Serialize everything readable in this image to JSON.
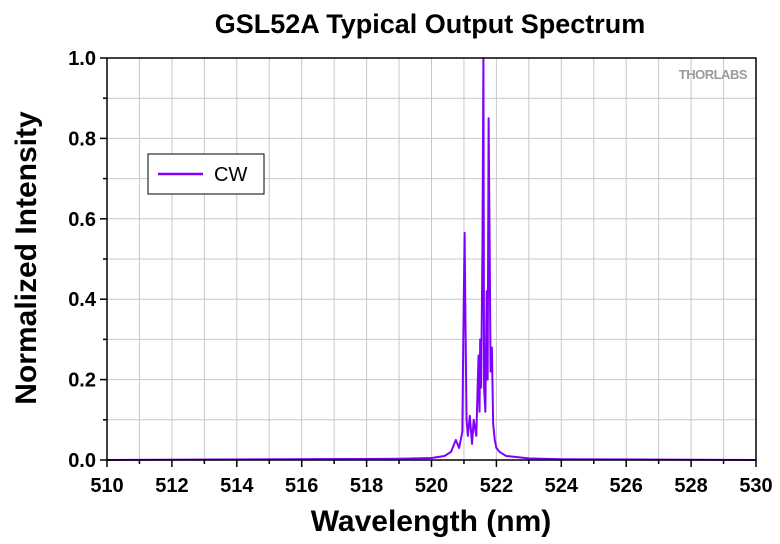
{
  "chart_data": {
    "type": "line",
    "title": "GSL52A Typical Output Spectrum",
    "xlabel": "Wavelength (nm)",
    "ylabel": "Normalized Intensity",
    "xlim": [
      510,
      530
    ],
    "ylim": [
      0,
      1.0
    ],
    "xticks": [
      "510",
      "512",
      "514",
      "516",
      "518",
      "520",
      "522",
      "524",
      "526",
      "528",
      "530"
    ],
    "yticks": [
      "0.0",
      "0.2",
      "0.4",
      "0.6",
      "0.8",
      "1.0"
    ],
    "grid": true,
    "legend_position": "upper-left",
    "logo": "THORLABS",
    "series": [
      {
        "name": "CW",
        "color": "#8000ff",
        "x": [
          510.0,
          519.0,
          520.0,
          520.4,
          520.6,
          520.75,
          520.85,
          520.95,
          520.98,
          521.02,
          521.05,
          521.08,
          521.12,
          521.18,
          521.25,
          521.3,
          521.38,
          521.45,
          521.48,
          521.5,
          521.53,
          521.57,
          521.6,
          521.62,
          521.66,
          521.7,
          521.73,
          521.76,
          521.8,
          521.82,
          521.86,
          521.9,
          521.95,
          522.0,
          522.1,
          522.3,
          523.0,
          524.0,
          530.0
        ],
        "values": [
          0.0,
          0.003,
          0.005,
          0.01,
          0.02,
          0.05,
          0.03,
          0.07,
          0.3,
          0.565,
          0.32,
          0.1,
          0.06,
          0.11,
          0.04,
          0.1,
          0.06,
          0.26,
          0.12,
          0.3,
          0.18,
          0.53,
          1.0,
          0.18,
          0.12,
          0.42,
          0.2,
          0.85,
          0.45,
          0.22,
          0.28,
          0.09,
          0.05,
          0.03,
          0.02,
          0.01,
          0.004,
          0.002,
          0.0
        ]
      }
    ]
  }
}
